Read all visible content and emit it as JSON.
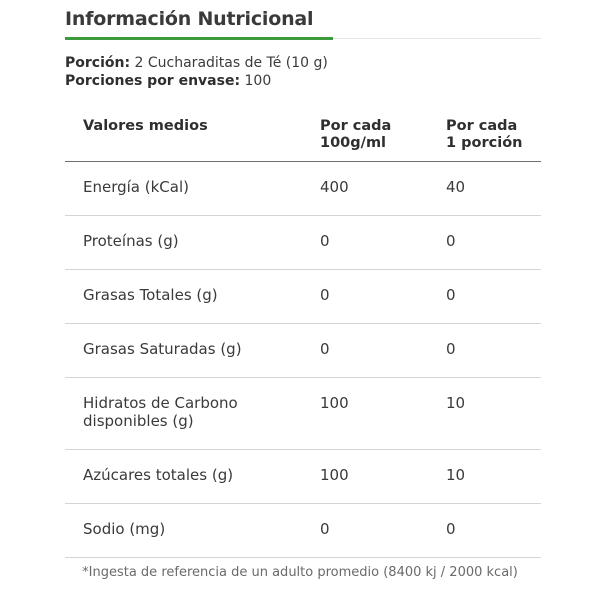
{
  "title": "Información Nutricional",
  "serving": {
    "portion_label": "Porción:",
    "portion_value": "2 Cucharaditas de Té (10 g)",
    "per_container_label": "Porciones por envase:",
    "per_container_value": "100"
  },
  "table": {
    "headers": {
      "col1": "Valores medios",
      "col2_line1": "Por cada",
      "col2_line2": "100g/ml",
      "col3_line1": "Por cada",
      "col3_line2": "1 porción"
    },
    "rows": [
      {
        "name": "Energía (kCal)",
        "per100": "400",
        "perServing": "40"
      },
      {
        "name": "Proteínas (g)",
        "per100": "0",
        "perServing": "0"
      },
      {
        "name": "Grasas Totales (g)",
        "per100": "0",
        "perServing": "0"
      },
      {
        "name": "Grasas Saturadas (g)",
        "per100": "0",
        "perServing": "0"
      },
      {
        "name_line1": "Hidratos de Carbono",
        "name_line2": "disponibles (g)",
        "per100": "100",
        "perServing": "10"
      },
      {
        "name": "Azúcares totales (g)",
        "per100": "100",
        "perServing": "10"
      },
      {
        "name": "Sodio (mg)",
        "per100": "0",
        "perServing": "0"
      }
    ]
  },
  "footnote": "*Ingesta de referencia de un adulto promedio (8400 kj / 2000 kcal)",
  "colors": {
    "accent": "#3c9a3c",
    "text": "#3c3c3c"
  }
}
